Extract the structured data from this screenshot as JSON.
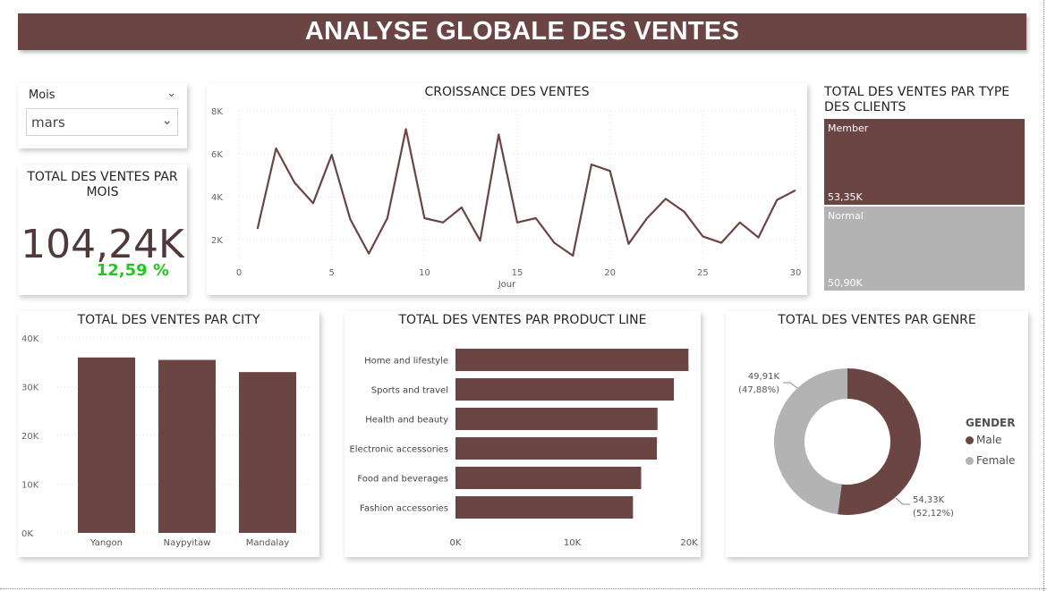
{
  "header": {
    "title": "ANALYSE GLOBALE DES VENTES"
  },
  "colors": {
    "primary": "#6b4444",
    "secondary": "#b3b3b3",
    "positive": "#22c722"
  },
  "slicer": {
    "label": "Mois",
    "value": "mars"
  },
  "kpi": {
    "title": "TOTAL DES VENTES PAR MOIS",
    "value": "104,24K",
    "change": "12,59 %"
  },
  "chart_data": [
    {
      "id": "croissance",
      "type": "line",
      "title": "CROISSANCE DES VENTES",
      "xlabel": "Jour",
      "ylabel": "",
      "x": [
        1,
        2,
        3,
        4,
        5,
        6,
        7,
        8,
        9,
        10,
        11,
        12,
        13,
        14,
        15,
        16,
        17,
        18,
        19,
        20,
        21,
        22,
        23,
        24,
        25,
        26,
        27,
        28,
        29,
        30
      ],
      "y": [
        2500,
        6250,
        4650,
        3700,
        5950,
        2950,
        1350,
        3000,
        7150,
        3000,
        2800,
        3500,
        1950,
        6900,
        2800,
        3000,
        1850,
        1250,
        5500,
        5200,
        1800,
        3000,
        3900,
        3300,
        2150,
        1850,
        2800,
        2100,
        3850,
        4300
      ],
      "xlim": [
        0,
        30
      ],
      "ylim": [
        1000,
        8000
      ],
      "xticks": [
        "0",
        "5",
        "10",
        "15",
        "20",
        "25",
        "30"
      ],
      "yticks": [
        "2K",
        "4K",
        "6K",
        "8K"
      ],
      "grid": true
    },
    {
      "id": "type-clients",
      "type": "treemap",
      "title": "TOTAL DES VENTES PAR TYPE DES CLIENTS",
      "categories": [
        "Member",
        "Normal"
      ],
      "values": [
        53350,
        50900
      ],
      "labels": [
        "53,35K",
        "50,90K"
      ]
    },
    {
      "id": "city",
      "type": "bar",
      "title": "TOTAL DES VENTES PAR CITY",
      "categories": [
        "Yangon",
        "Naypyitaw",
        "Mandalay"
      ],
      "values": [
        36000,
        35500,
        33000
      ],
      "ylim": [
        0,
        40000
      ],
      "yticks": [
        "0K",
        "10K",
        "20K",
        "30K",
        "40K"
      ],
      "grid": true
    },
    {
      "id": "product-line",
      "type": "bar",
      "orientation": "horizontal",
      "title": "TOTAL DES VENTES PAR PRODUCT LINE",
      "categories": [
        "Home and lifestyle",
        "Sports and travel",
        "Health and beauty",
        "Electronic accessories",
        "Food and beverages",
        "Fashion accessories"
      ],
      "values": [
        19950,
        18700,
        17300,
        17250,
        15900,
        15200
      ],
      "xlim": [
        0,
        20000
      ],
      "xticks": [
        "0K",
        "10K",
        "20K"
      ]
    },
    {
      "id": "genre",
      "type": "pie",
      "donut": true,
      "title": "TOTAL DES VENTES PAR GENRE",
      "legend_title": "GENDER",
      "legend_position": "right",
      "categories": [
        "Male",
        "Female"
      ],
      "values": [
        54330,
        49910
      ],
      "value_labels": [
        "54,33K",
        "49,91K"
      ],
      "percent_labels": [
        "(52,12%)",
        "(47,88%)"
      ]
    }
  ]
}
